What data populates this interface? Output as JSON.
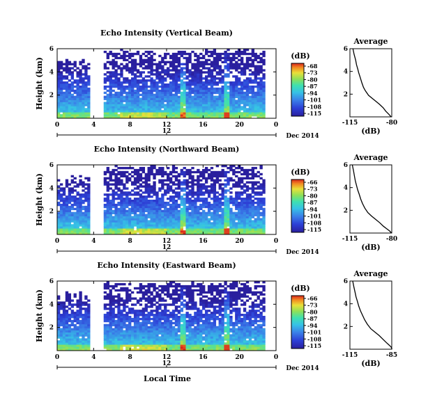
{
  "figure": {
    "date_label": "Dec 2014",
    "xlabel": "Local Time",
    "day_label": "12"
  },
  "chart_data": [
    {
      "type": "heatmap",
      "title": "Echo Intensity (Vertical Beam)",
      "ylabel": "Height (km)",
      "x_ticks": [
        "0",
        "4",
        "8",
        "12",
        "16",
        "20",
        "0"
      ],
      "y_ticks": [
        "6",
        "4",
        "2"
      ],
      "xlim": [
        0,
        24
      ],
      "ylim": [
        0,
        6
      ],
      "data_gap_hours": [
        3.6,
        5.1
      ],
      "colorbar": {
        "unit": "(dB)",
        "ticks": [
          "-68",
          "-73",
          "-80",
          "-87",
          "-94",
          "-101",
          "-108",
          "-115"
        ]
      },
      "profile": {
        "title": "Average",
        "xlabel": "(dB)",
        "x_ticks": [
          "-115",
          "-80"
        ],
        "y_ticks": [
          "6",
          "4",
          "2"
        ],
        "xlim": [
          -115,
          -80
        ],
        "ylim": [
          0,
          6
        ],
        "x": [
          -112.5,
          -111.5,
          -110.2,
          -109.5,
          -108.4,
          -107.7,
          -106.5,
          -105.0,
          -103.7,
          -102.1,
          -99.4,
          -96.0,
          -92.5,
          -90.2,
          -87.2,
          -85.0,
          -82.6,
          -80.5
        ],
        "y": [
          6.0,
          5.5,
          5.0,
          4.6,
          4.2,
          3.9,
          3.5,
          3.0,
          2.6,
          2.3,
          1.9,
          1.6,
          1.3,
          1.1,
          0.8,
          0.5,
          0.25,
          0.0
        ]
      }
    },
    {
      "type": "heatmap",
      "title": "Echo Intensity (Northward Beam)",
      "ylabel": "Height (km)",
      "x_ticks": [
        "0",
        "4",
        "8",
        "12",
        "16",
        "20",
        "0"
      ],
      "y_ticks": [
        "6",
        "4",
        "2"
      ],
      "xlim": [
        0,
        24
      ],
      "ylim": [
        0,
        6
      ],
      "data_gap_hours": [
        3.6,
        5.1
      ],
      "colorbar": {
        "unit": "(dB)",
        "ticks": [
          "-66",
          "-73",
          "-80",
          "-87",
          "-94",
          "-101",
          "-108",
          "-115"
        ]
      },
      "profile": {
        "title": "Average",
        "xlabel": "(dB)",
        "x_ticks": [
          "-115",
          "-80"
        ],
        "y_ticks": [
          "6",
          "4",
          "2"
        ],
        "xlim": [
          -115,
          -80
        ],
        "ylim": [
          0,
          6
        ],
        "x": [
          -113.0,
          -112.0,
          -111.2,
          -110.5,
          -109.5,
          -108.5,
          -107.2,
          -106.0,
          -104.5,
          -102.6,
          -100.0,
          -97.0,
          -93.5,
          -90.0,
          -87.0,
          -84.5,
          -82.0,
          -80.2
        ],
        "y": [
          6.0,
          5.5,
          5.0,
          4.6,
          4.2,
          3.8,
          3.4,
          3.0,
          2.6,
          2.2,
          1.8,
          1.5,
          1.2,
          0.9,
          0.6,
          0.4,
          0.2,
          0.0
        ]
      }
    },
    {
      "type": "heatmap",
      "title": "Echo Intensity (Eastward Beam)",
      "ylabel": "Height (km)",
      "x_ticks": [
        "0",
        "4",
        "8",
        "12",
        "16",
        "20",
        "0"
      ],
      "y_ticks": [
        "6",
        "4",
        "2"
      ],
      "xlim": [
        0,
        24
      ],
      "ylim": [
        0,
        6
      ],
      "data_gap_hours": [
        3.6,
        5.1
      ],
      "colorbar": {
        "unit": "(dB)",
        "ticks": [
          "-66",
          "-73",
          "-80",
          "-87",
          "-94",
          "-101",
          "-108",
          "-115"
        ]
      },
      "profile": {
        "title": "Average",
        "xlabel": "(dB)",
        "x_ticks": [
          "-115",
          "-85"
        ],
        "y_ticks": [
          "6",
          "4",
          "2"
        ],
        "xlim": [
          -115,
          -85
        ],
        "ylim": [
          0,
          6
        ],
        "x": [
          -113.0,
          -112.2,
          -111.3,
          -110.6,
          -109.6,
          -108.7,
          -107.5,
          -106.0,
          -104.5,
          -102.5,
          -100.0,
          -97.0,
          -94.0,
          -91.5,
          -89.0,
          -87.2,
          -85.5,
          -84.8
        ],
        "y": [
          6.0,
          5.5,
          5.0,
          4.6,
          4.2,
          3.8,
          3.4,
          3.0,
          2.6,
          2.2,
          1.8,
          1.5,
          1.2,
          0.9,
          0.6,
          0.4,
          0.2,
          0.0
        ]
      }
    }
  ]
}
